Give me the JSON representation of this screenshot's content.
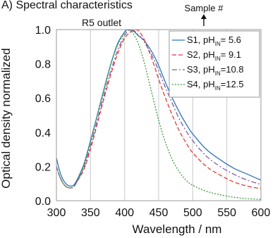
{
  "chart_data": {
    "type": "line",
    "title": "A) Spectral characteristics",
    "subtitle": "R5 outlet",
    "xlabel": "Wavelength / nm",
    "ylabel": "Optical density normalized",
    "xlim": [
      300,
      600
    ],
    "ylim": [
      0.0,
      1.0
    ],
    "xticks": [
      "300",
      "350",
      "400",
      "450",
      "500",
      "550",
      "600"
    ],
    "yticks": [
      "0.0",
      "0.2",
      "0.4",
      "0.6",
      "0.8",
      "1.0"
    ],
    "grid": "vertical",
    "legend_position": "top-right",
    "legend_annotation": "Sample #",
    "series": [
      {
        "name": "S1, pH = 5.6",
        "name_parts": [
          "S1, pH",
          "IN",
          "=  5.6"
        ],
        "color": "#2e75b6",
        "dash": "solid",
        "x": [
          300,
          305,
          310,
          315,
          320,
          325,
          330,
          340,
          350,
          360,
          370,
          380,
          390,
          400,
          405,
          410,
          415,
          420,
          425,
          430,
          440,
          450,
          460,
          470,
          480,
          490,
          500,
          520,
          540,
          560,
          580,
          600
        ],
        "y": [
          0.25,
          0.17,
          0.12,
          0.095,
          0.085,
          0.09,
          0.12,
          0.21,
          0.35,
          0.5,
          0.65,
          0.8,
          0.92,
          0.985,
          1.0,
          0.995,
          0.985,
          0.965,
          0.95,
          0.93,
          0.87,
          0.79,
          0.69,
          0.6,
          0.52,
          0.45,
          0.39,
          0.3,
          0.24,
          0.19,
          0.155,
          0.12
        ]
      },
      {
        "name": "S2, pH = 9.1",
        "name_parts": [
          "S2, pH",
          "IN",
          "=  9.1"
        ],
        "color": "#e03c31",
        "dash": "6,3",
        "x": [
          300,
          305,
          310,
          315,
          320,
          325,
          330,
          340,
          350,
          360,
          370,
          380,
          390,
          400,
          410,
          415,
          420,
          425,
          430,
          440,
          450,
          460,
          470,
          480,
          490,
          500,
          520,
          540,
          560,
          580,
          600
        ],
        "y": [
          0.2,
          0.14,
          0.1,
          0.08,
          0.075,
          0.08,
          0.11,
          0.18,
          0.3,
          0.45,
          0.6,
          0.74,
          0.86,
          0.95,
          0.99,
          1.0,
          0.995,
          0.97,
          0.93,
          0.83,
          0.71,
          0.6,
          0.5,
          0.41,
          0.34,
          0.28,
          0.2,
          0.15,
          0.11,
          0.085,
          0.07
        ]
      },
      {
        "name": "S3, pH =10.8",
        "name_parts": [
          "S3, pH",
          "IN",
          "=10.8"
        ],
        "color": "#7b5ea7",
        "dash": "7,3,2,3",
        "x": [
          300,
          305,
          310,
          315,
          320,
          325,
          330,
          340,
          350,
          360,
          370,
          380,
          390,
          400,
          405,
          410,
          415,
          420,
          425,
          430,
          440,
          450,
          460,
          470,
          480,
          490,
          500,
          520,
          540,
          560,
          580,
          600
        ],
        "y": [
          0.2,
          0.14,
          0.1,
          0.08,
          0.075,
          0.08,
          0.11,
          0.19,
          0.32,
          0.47,
          0.62,
          0.76,
          0.88,
          0.965,
          0.99,
          1.0,
          0.99,
          0.97,
          0.95,
          0.92,
          0.85,
          0.76,
          0.66,
          0.57,
          0.48,
          0.41,
          0.35,
          0.26,
          0.2,
          0.155,
          0.12,
          0.095
        ]
      },
      {
        "name": "S4, pH =12.5",
        "name_parts": [
          "S4, pH",
          "IN",
          "=12.5"
        ],
        "color": "#3a9d3a",
        "dash": "2,2",
        "x": [
          300,
          305,
          310,
          315,
          320,
          325,
          330,
          340,
          350,
          360,
          370,
          380,
          390,
          400,
          405,
          410,
          415,
          420,
          425,
          430,
          440,
          450,
          460,
          470,
          480,
          490,
          500,
          520,
          540,
          560,
          580,
          600
        ],
        "y": [
          0.2,
          0.14,
          0.1,
          0.08,
          0.075,
          0.08,
          0.11,
          0.2,
          0.34,
          0.5,
          0.66,
          0.8,
          0.91,
          0.98,
          1.0,
          0.99,
          0.96,
          0.92,
          0.86,
          0.79,
          0.63,
          0.47,
          0.34,
          0.24,
          0.17,
          0.12,
          0.09,
          0.055,
          0.035,
          0.02,
          0.012,
          0.008
        ]
      }
    ]
  }
}
